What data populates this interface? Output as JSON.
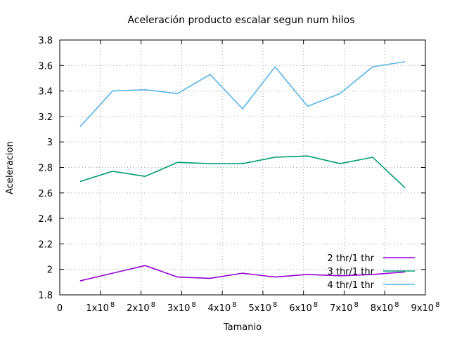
{
  "chart_data": {
    "type": "line",
    "title": "Aceleración producto escalar segun num hilos",
    "xlabel": "Tamanio",
    "ylabel": "Aceleracion",
    "xlim": [
      0,
      900000000
    ],
    "ylim": [
      1.8,
      3.8
    ],
    "grid": true,
    "legend_position": "bottom-right",
    "x_ticks": [
      {
        "value": 0,
        "label": "0",
        "exp": ""
      },
      {
        "value": 100000000,
        "label": "1x10",
        "exp": "8"
      },
      {
        "value": 200000000,
        "label": "2x10",
        "exp": "8"
      },
      {
        "value": 300000000,
        "label": "3x10",
        "exp": "8"
      },
      {
        "value": 400000000,
        "label": "4x10",
        "exp": "8"
      },
      {
        "value": 500000000,
        "label": "5x10",
        "exp": "8"
      },
      {
        "value": 600000000,
        "label": "6x10",
        "exp": "8"
      },
      {
        "value": 700000000,
        "label": "7x10",
        "exp": "8"
      },
      {
        "value": 800000000,
        "label": "8x10",
        "exp": "8"
      },
      {
        "value": 900000000,
        "label": "9x10",
        "exp": "8"
      }
    ],
    "y_ticks": [
      {
        "value": 1.8,
        "label": "1.8"
      },
      {
        "value": 2.0,
        "label": "2"
      },
      {
        "value": 2.2,
        "label": "2.2"
      },
      {
        "value": 2.4,
        "label": "2.4"
      },
      {
        "value": 2.6,
        "label": "2.6"
      },
      {
        "value": 2.8,
        "label": "2.8"
      },
      {
        "value": 3.0,
        "label": "3"
      },
      {
        "value": 3.2,
        "label": "3.2"
      },
      {
        "value": 3.4,
        "label": "3.4"
      },
      {
        "value": 3.6,
        "label": "3.6"
      },
      {
        "value": 3.8,
        "label": "3.8"
      }
    ],
    "x": [
      50000000,
      130000000,
      210000000,
      290000000,
      370000000,
      450000000,
      530000000,
      610000000,
      690000000,
      770000000,
      850000000
    ],
    "series": [
      {
        "name": "2 thr/1 thr",
        "color": "#9400d3",
        "values": [
          1.91,
          1.97,
          2.03,
          1.94,
          1.93,
          1.97,
          1.94,
          1.96,
          1.95,
          1.96,
          1.98
        ]
      },
      {
        "name": "3 thr/1 thr",
        "color": "#009e73",
        "values": [
          2.69,
          2.77,
          2.73,
          2.84,
          2.83,
          2.83,
          2.88,
          2.89,
          2.83,
          2.88,
          2.64
        ]
      },
      {
        "name": "4 thr/1 thr",
        "color": "#56b4e9",
        "values": [
          3.12,
          3.4,
          3.41,
          3.38,
          3.53,
          3.26,
          3.59,
          3.28,
          3.38,
          3.59,
          3.63
        ]
      }
    ]
  }
}
